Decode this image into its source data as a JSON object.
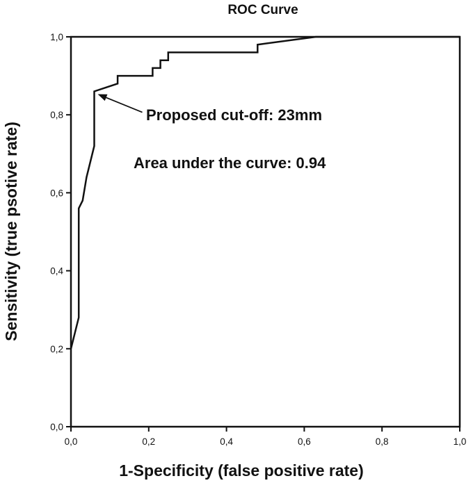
{
  "chart_data": {
    "type": "line",
    "title": "ROC Curve",
    "xlabel": "1-Specificity (false positive rate)",
    "ylabel": "Sensitivity (true psotive rate)",
    "xlim": [
      0,
      1
    ],
    "ylim": [
      0,
      1
    ],
    "x_ticks": [
      "0,0",
      "0,2",
      "0,4",
      "0,6",
      "0,8",
      "1,0"
    ],
    "y_ticks": [
      "0,0",
      "0,2",
      "0,4",
      "0,6",
      "0,8",
      "1,0"
    ],
    "grid": false,
    "series": [
      {
        "x": [
          0.0,
          0.0,
          0.02,
          0.02,
          0.03,
          0.03,
          0.04,
          0.04,
          0.06,
          0.06,
          0.12,
          0.12,
          0.21,
          0.21,
          0.23,
          0.23,
          0.25,
          0.25,
          0.48,
          0.48,
          0.63,
          1.0
        ],
        "y": [
          0.2,
          0.2,
          0.28,
          0.56,
          0.58,
          0.58,
          0.64,
          0.64,
          0.72,
          0.86,
          0.88,
          0.9,
          0.9,
          0.92,
          0.92,
          0.94,
          0.94,
          0.96,
          0.96,
          0.98,
          1.0,
          1.0
        ]
      }
    ],
    "annotations": [
      {
        "text": "Proposed cut-off: 23mm",
        "point_x": 0.06,
        "point_y": 0.86
      },
      {
        "text": "Area under the curve: 0.94"
      }
    ]
  }
}
